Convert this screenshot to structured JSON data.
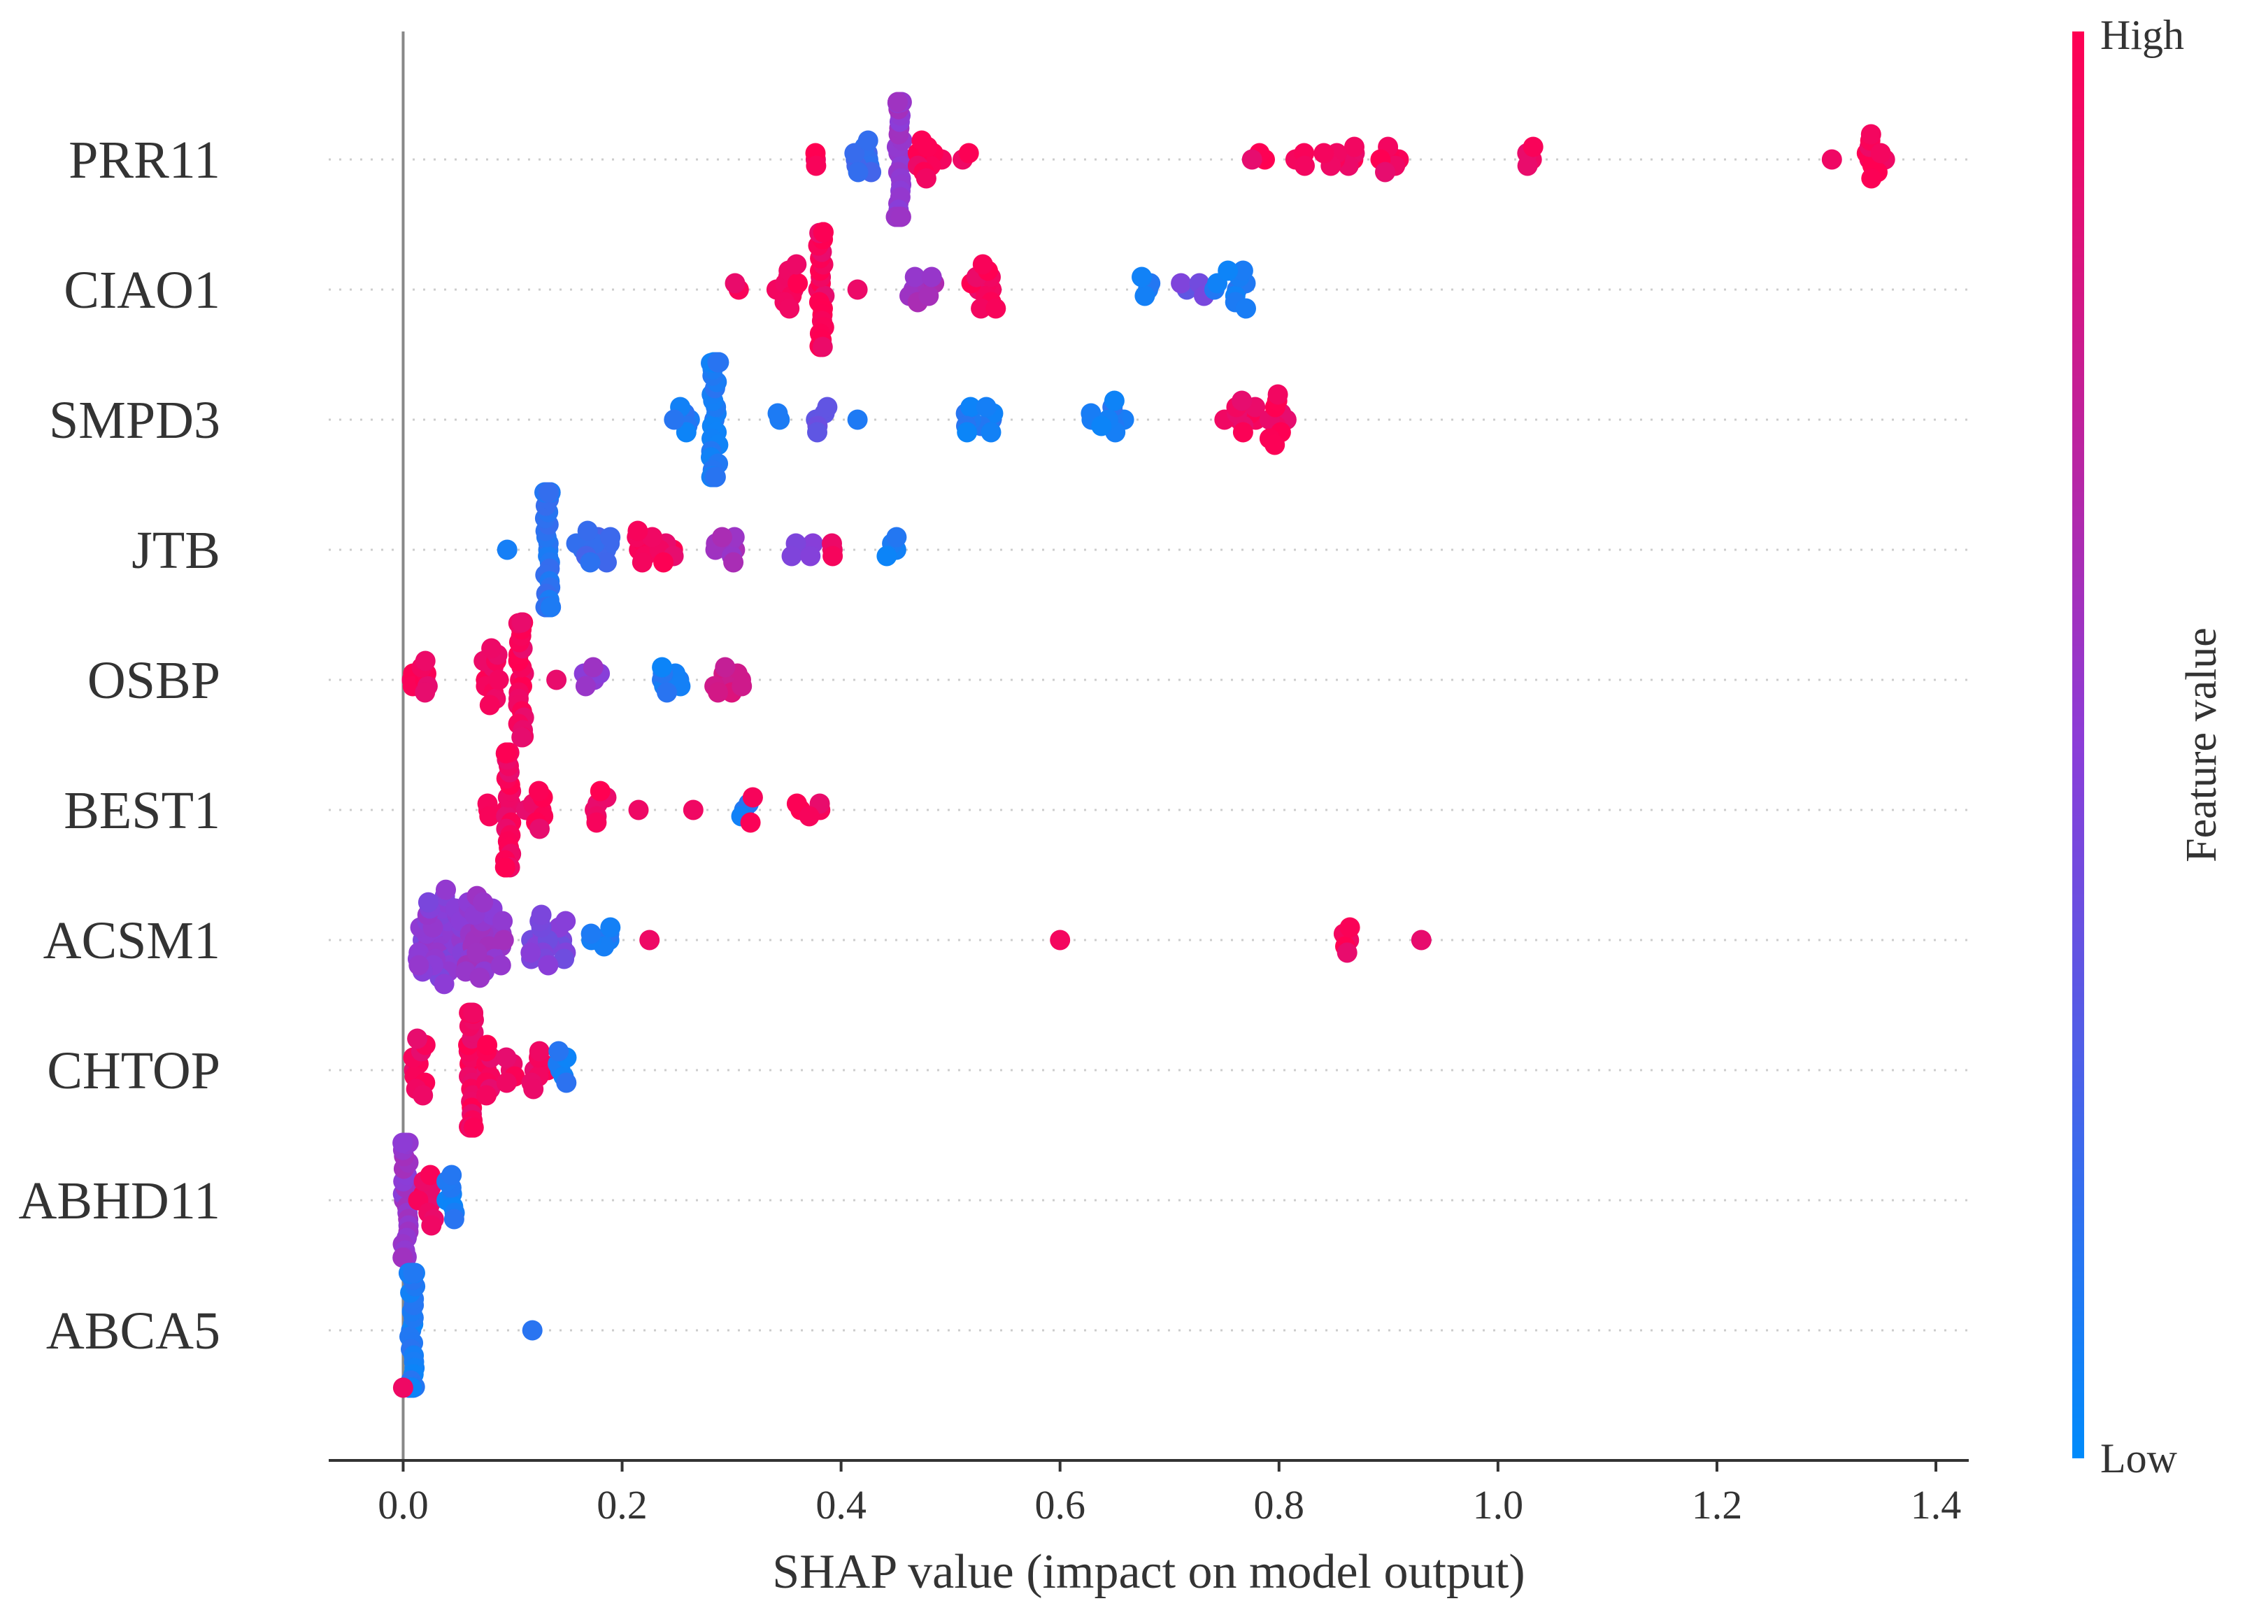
{
  "chart_data": {
    "type": "scatter",
    "subtype": "shap-beeswarm",
    "title": "",
    "xlabel": "SHAP value (impact on model output)",
    "ylabel": "",
    "xlim": [
      -0.068,
      1.43
    ],
    "xticks": [
      0.0,
      0.2,
      0.4,
      0.6,
      0.8,
      1.0,
      1.2,
      1.4
    ],
    "xtick_labels": [
      "0.0",
      "0.2",
      "0.4",
      "0.6",
      "0.8",
      "1.0",
      "1.2",
      "1.4"
    ],
    "grid": false,
    "zero_line": 0.0,
    "colorbar": {
      "title": "Feature value",
      "high_label": "High",
      "low_label": "Low",
      "high_color": "#ff0052",
      "mid_color": "#8b3dd8",
      "low_color": "#008bfb"
    },
    "features": [
      {
        "name": "PRR11",
        "clusters": [
          {
            "x": 0.375,
            "n": 3,
            "c": 0.95,
            "s": 0.006
          },
          {
            "x": 0.42,
            "n": 10,
            "c": 0.2,
            "s": 0.01
          },
          {
            "x": 0.453,
            "n": 34,
            "c": 0.55,
            "s": 0.003
          },
          {
            "x": 0.48,
            "n": 10,
            "c": 0.95,
            "s": 0.012
          },
          {
            "x": 0.515,
            "n": 2,
            "c": 0.95,
            "s": 0.004
          },
          {
            "x": 0.78,
            "n": 3,
            "c": 0.95,
            "s": 0.012
          },
          {
            "x": 0.82,
            "n": 3,
            "c": 0.95,
            "s": 0.01
          },
          {
            "x": 0.86,
            "n": 8,
            "c": 0.95,
            "s": 0.025
          },
          {
            "x": 0.9,
            "n": 6,
            "c": 0.95,
            "s": 0.01
          },
          {
            "x": 1.03,
            "n": 4,
            "c": 0.95,
            "s": 0.004
          },
          {
            "x": 1.305,
            "n": 1,
            "c": 0.95,
            "s": 0.0
          },
          {
            "x": 1.345,
            "n": 10,
            "c": 0.95,
            "s": 0.01
          }
        ]
      },
      {
        "name": "CIAO1",
        "clusters": [
          {
            "x": 0.305,
            "n": 2,
            "c": 0.95,
            "s": 0.004
          },
          {
            "x": 0.35,
            "n": 10,
            "c": 0.95,
            "s": 0.012
          },
          {
            "x": 0.382,
            "n": 24,
            "c": 0.95,
            "s": 0.003
          },
          {
            "x": 0.415,
            "n": 1,
            "c": 0.95,
            "s": 0.0
          },
          {
            "x": 0.48,
            "n": 9,
            "c": 0.6,
            "s": 0.02
          },
          {
            "x": 0.53,
            "n": 12,
            "c": 0.95,
            "s": 0.012
          },
          {
            "x": 0.68,
            "n": 4,
            "c": 0.1,
            "s": 0.006
          },
          {
            "x": 0.72,
            "n": 5,
            "c": 0.4,
            "s": 0.012
          },
          {
            "x": 0.755,
            "n": 10,
            "c": 0.1,
            "s": 0.015
          }
        ]
      },
      {
        "name": "SMPD3",
        "clusters": [
          {
            "x": 0.255,
            "n": 6,
            "c": 0.1,
            "s": 0.008
          },
          {
            "x": 0.285,
            "n": 34,
            "c": 0.1,
            "s": 0.004
          },
          {
            "x": 0.345,
            "n": 2,
            "c": 0.1,
            "s": 0.004
          },
          {
            "x": 0.38,
            "n": 5,
            "c": 0.35,
            "s": 0.008
          },
          {
            "x": 0.415,
            "n": 1,
            "c": 0.1,
            "s": 0.0
          },
          {
            "x": 0.525,
            "n": 10,
            "c": 0.1,
            "s": 0.015
          },
          {
            "x": 0.64,
            "n": 10,
            "c": 0.1,
            "s": 0.02
          },
          {
            "x": 0.765,
            "n": 10,
            "c": 0.95,
            "s": 0.015
          },
          {
            "x": 0.8,
            "n": 10,
            "c": 0.95,
            "s": 0.01
          }
        ]
      },
      {
        "name": "JTB",
        "clusters": [
          {
            "x": 0.095,
            "n": 1,
            "c": 0.1,
            "s": 0.0
          },
          {
            "x": 0.132,
            "n": 40,
            "c": 0.15,
            "s": 0.003
          },
          {
            "x": 0.17,
            "n": 12,
            "c": 0.2,
            "s": 0.02
          },
          {
            "x": 0.23,
            "n": 12,
            "c": 0.95,
            "s": 0.02
          },
          {
            "x": 0.29,
            "n": 8,
            "c": 0.6,
            "s": 0.015
          },
          {
            "x": 0.365,
            "n": 5,
            "c": 0.5,
            "s": 0.012
          },
          {
            "x": 0.39,
            "n": 3,
            "c": 0.95,
            "s": 0.005
          },
          {
            "x": 0.445,
            "n": 4,
            "c": 0.1,
            "s": 0.006
          }
        ]
      },
      {
        "name": "OSBP",
        "clusters": [
          {
            "x": 0.005,
            "n": 3,
            "c": 0.95,
            "s": 0.005
          },
          {
            "x": 0.02,
            "n": 6,
            "c": 0.95,
            "s": 0.003
          },
          {
            "x": 0.085,
            "n": 12,
            "c": 0.95,
            "s": 0.012
          },
          {
            "x": 0.108,
            "n": 24,
            "c": 0.95,
            "s": 0.003
          },
          {
            "x": 0.14,
            "n": 1,
            "c": 0.95,
            "s": 0.0
          },
          {
            "x": 0.175,
            "n": 5,
            "c": 0.55,
            "s": 0.01
          },
          {
            "x": 0.245,
            "n": 8,
            "c": 0.1,
            "s": 0.01
          },
          {
            "x": 0.295,
            "n": 10,
            "c": 0.8,
            "s": 0.015
          }
        ]
      },
      {
        "name": "BEST1",
        "clusters": [
          {
            "x": 0.08,
            "n": 3,
            "c": 0.95,
            "s": 0.005
          },
          {
            "x": 0.096,
            "n": 30,
            "c": 0.95,
            "s": 0.003
          },
          {
            "x": 0.12,
            "n": 8,
            "c": 0.95,
            "s": 0.008
          },
          {
            "x": 0.175,
            "n": 6,
            "c": 0.95,
            "s": 0.012
          },
          {
            "x": 0.215,
            "n": 1,
            "c": 0.95,
            "s": 0.0
          },
          {
            "x": 0.265,
            "n": 1,
            "c": 0.95,
            "s": 0.0
          },
          {
            "x": 0.31,
            "n": 3,
            "c": 0.1,
            "s": 0.006
          },
          {
            "x": 0.32,
            "n": 2,
            "c": 0.95,
            "s": 0.003
          },
          {
            "x": 0.37,
            "n": 5,
            "c": 0.95,
            "s": 0.012
          }
        ]
      },
      {
        "name": "ACSM1",
        "clusters": [
          {
            "x": 0.035,
            "n": 40,
            "c": 0.5,
            "s": 0.022
          },
          {
            "x": 0.075,
            "n": 30,
            "c": 0.55,
            "s": 0.018
          },
          {
            "x": 0.13,
            "n": 20,
            "c": 0.45,
            "s": 0.02
          },
          {
            "x": 0.18,
            "n": 6,
            "c": 0.1,
            "s": 0.01
          },
          {
            "x": 0.225,
            "n": 1,
            "c": 0.95,
            "s": 0.0
          },
          {
            "x": 0.6,
            "n": 1,
            "c": 0.95,
            "s": 0.0
          },
          {
            "x": 0.862,
            "n": 5,
            "c": 0.95,
            "s": 0.003
          },
          {
            "x": 0.93,
            "n": 1,
            "c": 0.95,
            "s": 0.0
          }
        ]
      },
      {
        "name": "CHTOP",
        "clusters": [
          {
            "x": 0.015,
            "n": 10,
            "c": 0.95,
            "s": 0.006
          },
          {
            "x": 0.062,
            "n": 30,
            "c": 0.95,
            "s": 0.003
          },
          {
            "x": 0.09,
            "n": 14,
            "c": 0.95,
            "s": 0.015
          },
          {
            "x": 0.125,
            "n": 8,
            "c": 0.95,
            "s": 0.008
          },
          {
            "x": 0.145,
            "n": 6,
            "c": 0.1,
            "s": 0.006
          }
        ]
      },
      {
        "name": "ABHD11",
        "clusters": [
          {
            "x": 0.002,
            "n": 30,
            "c": 0.55,
            "s": 0.003
          },
          {
            "x": 0.02,
            "n": 10,
            "c": 0.95,
            "s": 0.008
          },
          {
            "x": 0.04,
            "n": 8,
            "c": 0.1,
            "s": 0.01
          }
        ]
      },
      {
        "name": "ABCA5",
        "clusters": [
          {
            "x": 0.008,
            "n": 30,
            "c": 0.1,
            "s": 0.003
          },
          {
            "x": 0.0,
            "n": 1,
            "c": 0.95,
            "s": 0.0
          },
          {
            "x": 0.118,
            "n": 1,
            "c": 0.1,
            "s": 0.0
          }
        ]
      }
    ]
  }
}
